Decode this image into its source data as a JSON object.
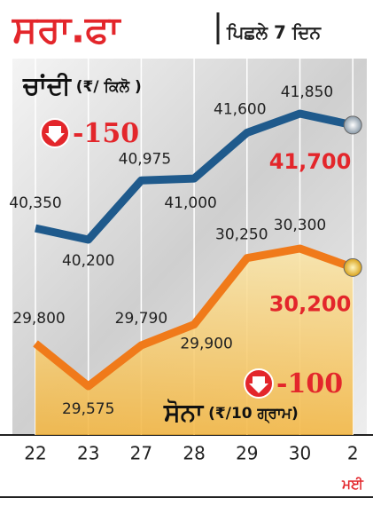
{
  "chart_data": {
    "type": "line",
    "title": "ਸਰਾ.ਫਾ",
    "subtitle": "ਪਿਛਲੇ 7 ਦਿਨ",
    "categories": [
      "22",
      "23",
      "27",
      "28",
      "29",
      "30",
      "2"
    ],
    "month_label": "ਮਈ",
    "series": [
      {
        "name": "ਚਾਂਦੀ",
        "unit": "(₹/ ਕਿਲੋ )",
        "color": "#1f5a8c",
        "change": -150,
        "values": [
          40350,
          40200,
          40975,
          41000,
          41600,
          41850,
          41700
        ],
        "value_labels": [
          "40,350",
          "40,200",
          "40,975",
          "41,000",
          "41,600",
          "41,850",
          "41,700"
        ]
      },
      {
        "name": "ਸੋਨਾ",
        "unit": "(₹/10 ਗ੍ਰਾਮ)",
        "color": "#f07a1a",
        "change": -100,
        "values": [
          29800,
          29575,
          29790,
          29900,
          30250,
          30300,
          30200
        ],
        "value_labels": [
          "29,800",
          "29,575",
          "29,790",
          "29,900",
          "30,250",
          "30,300",
          "30,200"
        ]
      }
    ]
  }
}
